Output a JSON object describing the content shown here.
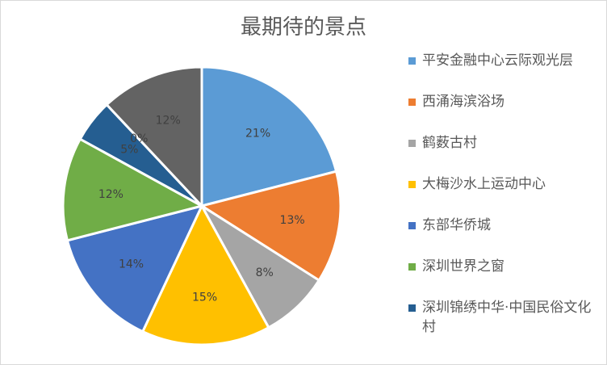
{
  "chart_data": {
    "type": "pie",
    "title": "最期待的景点",
    "legend_position": "right",
    "categories": [
      "平安金融中心云际观光层",
      "西涌海滨浴场",
      "鹤薮古村",
      "大梅沙水上运动中心",
      "东部华侨城",
      "深圳世界之窗",
      "深圳锦绣中华·中国民俗文化村",
      "",
      ""
    ],
    "values": [
      21,
      13,
      8,
      15,
      14,
      12,
      5,
      0,
      12
    ],
    "data_labels": [
      "21%",
      "13%",
      "8%",
      "15%",
      "14%",
      "12%",
      "5%",
      "0%",
      "12%"
    ],
    "colors": [
      "#5B9BD5",
      "#ED7D31",
      "#A5A5A5",
      "#FFC000",
      "#4472C4",
      "#70AD47",
      "#255E91",
      "#9E480E",
      "#636363"
    ]
  }
}
